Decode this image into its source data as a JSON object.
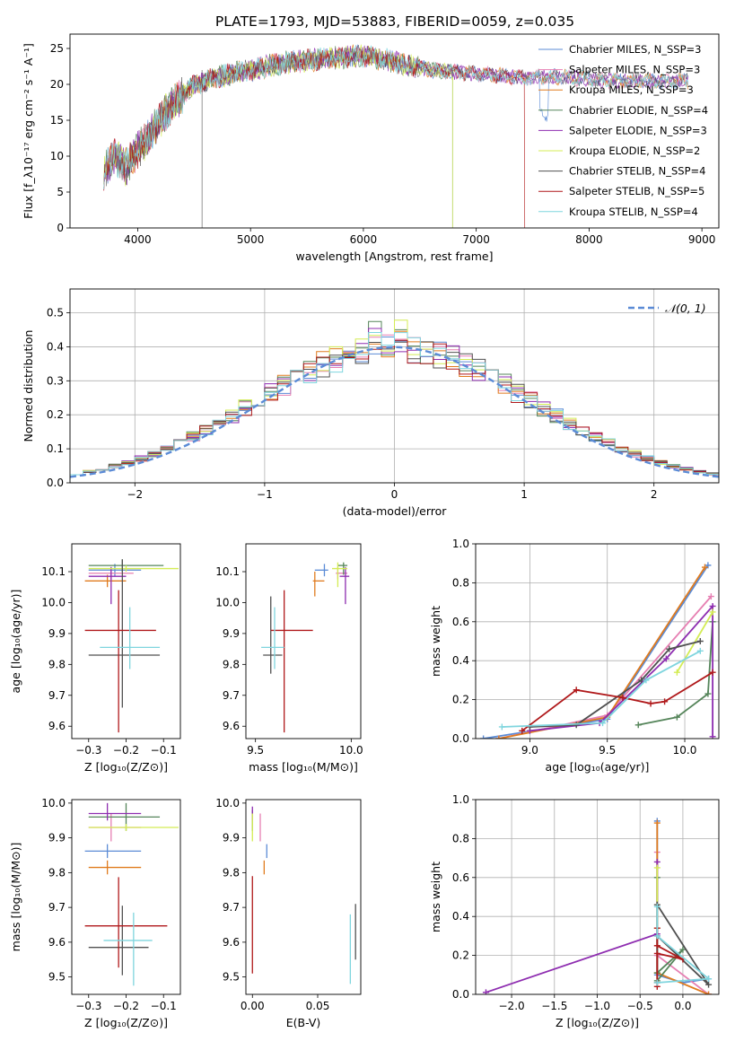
{
  "figure_title": "PLATE=1793, MJD=53883, FIBERID=0059, z=0.035",
  "colors": {
    "chabrier_miles": "#5b8bd6",
    "salpeter_miles": "#e67fb2",
    "kroupa_miles": "#e07b1e",
    "chabrier_elodie": "#55855a",
    "salpeter_elodie": "#8e2db0",
    "kroupa_elodie": "#d4ec54",
    "chabrier_stelib": "#505050",
    "salpeter_stelib": "#b0191b",
    "kroupa_stelib": "#7fd5de"
  },
  "chart_data": [
    {
      "id": "spectrum",
      "type": "line",
      "xlabel": "wavelength [Angstrom, rest frame]",
      "ylabel": "Flux [f_λ10⁻¹⁷ erg cm⁻² s⁻¹ A⁻¹]",
      "xlim": [
        3400,
        9150
      ],
      "ylim": [
        0,
        27
      ],
      "xticks": [
        4000,
        5000,
        6000,
        7000,
        8000,
        9000
      ],
      "yticks": [
        0,
        5,
        10,
        15,
        20,
        25
      ],
      "legend_position": "top-right",
      "legend": [
        "Chabrier MILES, N_SSP=3",
        "Salpeter MILES, N_SSP=3",
        "Kroupa MILES, N_SSP=3",
        "Chabrier ELODIE, N_SSP=4",
        "Salpeter ELODIE, N_SSP=3",
        "Kroupa ELODIE, N_SSP=2",
        "Chabrier STELIB, N_SSP=4",
        "Salpeter STELIB, N_SSP=5",
        "Kroupa STELIB, N_SSP=4"
      ],
      "spectrum_anchors": [
        [
          3700,
          8
        ],
        [
          3800,
          10
        ],
        [
          3900,
          8.5
        ],
        [
          4000,
          11
        ],
        [
          4100,
          12.5
        ],
        [
          4200,
          15
        ],
        [
          4300,
          17
        ],
        [
          4500,
          20
        ],
        [
          4700,
          21
        ],
        [
          5000,
          22
        ],
        [
          5300,
          23
        ],
        [
          5600,
          23.5
        ],
        [
          6000,
          24
        ],
        [
          6300,
          23
        ],
        [
          6600,
          22
        ],
        [
          7000,
          21.5
        ],
        [
          7400,
          21
        ],
        [
          7800,
          21
        ],
        [
          8200,
          20.5
        ],
        [
          8500,
          20.5
        ],
        [
          8900,
          20.5
        ]
      ],
      "drop_features": [
        [
          4570,
          0
        ],
        [
          6790,
          0
        ],
        [
          7430,
          0
        ]
      ]
    },
    {
      "id": "residuals",
      "type": "histogram",
      "xlabel": "(data-model)/error",
      "ylabel": "Normed distribution",
      "xlim": [
        -2.5,
        2.5
      ],
      "ylim": [
        0,
        0.57
      ],
      "xticks": [
        -2,
        -1,
        0,
        1,
        2
      ],
      "yticks": [
        0.0,
        0.1,
        0.2,
        0.3,
        0.4,
        0.5
      ],
      "legend_position": "top-right",
      "reference_label": "𝒩(0, 1)",
      "bin_width": 0.1
    },
    {
      "id": "age-vs-Z",
      "type": "scatter",
      "xlabel": "Z [log₁₀(Z/Z⊙)]",
      "ylabel": "age  [log₁₀(age/yr)]",
      "xlim": [
        -0.345,
        -0.055
      ],
      "ylim": [
        9.56,
        10.19
      ],
      "xticks": [
        -0.3,
        -0.2,
        -0.1
      ],
      "yticks": [
        9.6,
        9.7,
        9.8,
        9.9,
        10.0,
        10.1
      ],
      "points": [
        {
          "x": -0.23,
          "y": 10.105,
          "xerr": [
            0.07,
            0.07
          ],
          "yerr": [
            0.02,
            0.02
          ]
        },
        {
          "x": -0.24,
          "y": 10.095,
          "xerr": [
            0.06,
            0.06
          ],
          "yerr": [
            0.02,
            0.02
          ]
        },
        {
          "x": -0.25,
          "y": 10.07,
          "xerr": [
            0.06,
            0.05
          ],
          "yerr": [
            0.02,
            0.02
          ]
        },
        {
          "x": -0.21,
          "y": 10.12,
          "xerr": [
            0.09,
            0.11
          ],
          "yerr": [
            0.02,
            0.02
          ]
        },
        {
          "x": -0.24,
          "y": 10.085,
          "xerr": [
            0.06,
            0.04
          ],
          "yerr": [
            0.09,
            0.03
          ]
        },
        {
          "x": -0.2,
          "y": 10.11,
          "xerr": [
            0.1,
            0.14
          ],
          "yerr": [
            0.01,
            0.01
          ]
        },
        {
          "x": -0.21,
          "y": 9.83,
          "xerr": [
            0.09,
            0.1
          ],
          "yerr": [
            0.17,
            0.31
          ]
        },
        {
          "x": -0.22,
          "y": 9.91,
          "xerr": [
            0.09,
            0.1
          ],
          "yerr": [
            0.33,
            0.13
          ]
        },
        {
          "x": -0.19,
          "y": 9.855,
          "xerr": [
            0.08,
            0.08
          ],
          "yerr": [
            0.07,
            0.13
          ]
        }
      ]
    },
    {
      "id": "age-vs-mass",
      "type": "scatter",
      "xlabel": "mass [log₁₀(M/M⊙)]",
      "xlim": [
        9.45,
        10.05
      ],
      "ylim": [
        9.56,
        10.19
      ],
      "xticks": [
        9.5,
        10.0
      ],
      "yticks": [
        9.6,
        9.7,
        9.8,
        9.9,
        10.0,
        10.1
      ],
      "points": [
        {
          "x": 9.86,
          "y": 10.105,
          "xerr": [
            0.05,
            0.02
          ],
          "yerr": [
            0.02,
            0.02
          ]
        },
        {
          "x": 9.93,
          "y": 10.095,
          "xerr": [
            0.01,
            0.05
          ],
          "yerr": [
            0.02,
            0.02
          ]
        },
        {
          "x": 9.81,
          "y": 10.07,
          "xerr": [
            0.01,
            0.05
          ],
          "yerr": [
            0.05,
            0.03
          ]
        },
        {
          "x": 9.96,
          "y": 10.12,
          "xerr": [
            0.03,
            0.02
          ],
          "yerr": [
            0.03,
            0.01
          ]
        },
        {
          "x": 9.97,
          "y": 10.085,
          "xerr": [
            0.03,
            0.02
          ],
          "yerr": [
            0.09,
            0.03
          ]
        },
        {
          "x": 9.93,
          "y": 10.11,
          "xerr": [
            0.03,
            0.05
          ],
          "yerr": [
            0.06,
            0.02
          ]
        },
        {
          "x": 9.58,
          "y": 9.83,
          "xerr": [
            0.04,
            0.06
          ],
          "yerr": [
            0.06,
            0.19
          ]
        },
        {
          "x": 9.65,
          "y": 9.91,
          "xerr": [
            0.07,
            0.15
          ],
          "yerr": [
            0.33,
            0.13
          ]
        },
        {
          "x": 9.6,
          "y": 9.855,
          "xerr": [
            0.07,
            0.05
          ],
          "yerr": [
            0.07,
            0.13
          ]
        }
      ]
    },
    {
      "id": "massweight-vs-age",
      "type": "line",
      "xlabel": "age  [log₁₀(age/yr)]",
      "ylabel": "mass weight",
      "xlim": [
        8.65,
        10.22
      ],
      "ylim": [
        0,
        1.0
      ],
      "xticks": [
        9.0,
        9.5,
        10.0
      ],
      "yticks": [
        0.0,
        0.2,
        0.4,
        0.6,
        0.8,
        1.0
      ],
      "series": [
        {
          "points": [
            [
              8.7,
              0.0
            ],
            [
              9.5,
              0.1
            ],
            [
              10.15,
              0.89
            ]
          ]
        },
        {
          "points": [
            [
              8.8,
              0.0
            ],
            [
              9.5,
              0.12
            ],
            [
              10.17,
              0.73
            ]
          ]
        },
        {
          "points": [
            [
              8.8,
              0.0
            ],
            [
              9.5,
              0.11
            ],
            [
              10.13,
              0.88
            ]
          ]
        },
        {
          "points": [
            [
              9.7,
              0.07
            ],
            [
              9.95,
              0.11
            ],
            [
              10.15,
              0.23
            ],
            [
              10.18,
              0.6
            ]
          ]
        },
        {
          "points": [
            [
              9.0,
              0.04
            ],
            [
              9.45,
              0.08
            ],
            [
              9.88,
              0.41
            ],
            [
              10.18,
              0.68
            ],
            [
              10.18,
              0.01
            ]
          ]
        },
        {
          "points": [
            [
              9.95,
              0.34
            ],
            [
              10.18,
              0.65
            ]
          ]
        },
        {
          "points": [
            [
              9.0,
              0.06
            ],
            [
              9.3,
              0.07
            ],
            [
              9.72,
              0.3
            ],
            [
              9.9,
              0.46
            ],
            [
              10.1,
              0.5
            ]
          ]
        },
        {
          "points": [
            [
              8.95,
              0.04
            ],
            [
              9.3,
              0.25
            ],
            [
              9.6,
              0.21
            ],
            [
              9.78,
              0.18
            ],
            [
              9.87,
              0.19
            ],
            [
              10.18,
              0.34
            ]
          ]
        },
        {
          "points": [
            [
              8.82,
              0.06
            ],
            [
              9.47,
              0.08
            ],
            [
              9.75,
              0.3
            ],
            [
              10.1,
              0.45
            ]
          ]
        }
      ]
    },
    {
      "id": "mass-vs-Z",
      "type": "scatter",
      "xlabel": "Z [log₁₀(Z/Z⊙)]",
      "ylabel": "mass [log₁₀(M/M⊙)]",
      "xlim": [
        -0.345,
        -0.055
      ],
      "ylim": [
        9.45,
        10.01
      ],
      "xticks": [
        -0.3,
        -0.2,
        -0.1
      ],
      "yticks": [
        9.5,
        9.6,
        9.7,
        9.8,
        9.9,
        10.0
      ],
      "points": [
        {
          "x": -0.25,
          "y": 9.862,
          "xerr": [
            0.06,
            0.09
          ],
          "yerr": [
            0.02,
            0.02
          ]
        },
        {
          "x": -0.24,
          "y": 9.93,
          "xerr": [
            0.06,
            0.08
          ],
          "yerr": [
            0.04,
            0.04
          ]
        },
        {
          "x": -0.25,
          "y": 9.815,
          "xerr": [
            0.05,
            0.09
          ],
          "yerr": [
            0.02,
            0.02
          ]
        },
        {
          "x": -0.2,
          "y": 9.96,
          "xerr": [
            0.1,
            0.09
          ],
          "yerr": [
            0.04,
            0.04
          ]
        },
        {
          "x": -0.25,
          "y": 9.97,
          "xerr": [
            0.05,
            0.09
          ],
          "yerr": [
            0.02,
            0.03
          ]
        },
        {
          "x": -0.2,
          "y": 9.93,
          "xerr": [
            0.1,
            0.14
          ],
          "yerr": [
            0.01,
            0.01
          ]
        },
        {
          "x": -0.21,
          "y": 9.585,
          "xerr": [
            0.09,
            0.07
          ],
          "yerr": [
            0.08,
            0.12
          ]
        },
        {
          "x": -0.22,
          "y": 9.647,
          "xerr": [
            0.09,
            0.13
          ],
          "yerr": [
            0.12,
            0.14
          ]
        },
        {
          "x": -0.18,
          "y": 9.605,
          "xerr": [
            0.08,
            0.05
          ],
          "yerr": [
            0.13,
            0.08
          ]
        }
      ]
    },
    {
      "id": "mass-vs-EBV",
      "type": "scatter",
      "xlabel": "E(B-V)",
      "xlim": [
        -0.005,
        0.083
      ],
      "ylim": [
        9.45,
        10.01
      ],
      "xticks": [
        0.0,
        0.05
      ],
      "yticks": [
        9.5,
        9.6,
        9.7,
        9.8,
        9.9,
        10.0
      ],
      "points": [
        {
          "x": 0.011,
          "y": 9.862,
          "xerr": [
            0.0,
            0.0
          ],
          "yerr": [
            0.02,
            0.02
          ]
        },
        {
          "x": 0.006,
          "y": 9.93,
          "xerr": [
            0.0,
            0.0
          ],
          "yerr": [
            0.04,
            0.04
          ]
        },
        {
          "x": 0.009,
          "y": 9.815,
          "xerr": [
            0.0,
            0.0
          ],
          "yerr": [
            0.02,
            0.02
          ]
        },
        {
          "x": 0.0,
          "y": 9.96,
          "xerr": [
            0.0,
            0.0
          ],
          "yerr": [
            0.04,
            0.02
          ]
        },
        {
          "x": 0.0,
          "y": 9.97,
          "xerr": [
            0.0,
            0.0
          ],
          "yerr": [
            0.02,
            0.02
          ]
        },
        {
          "x": 0.0,
          "y": 9.93,
          "xerr": [
            0.0,
            0.0
          ],
          "yerr": [
            0.04,
            0.04
          ]
        },
        {
          "x": 0.079,
          "y": 9.63,
          "xerr": [
            0.0,
            0.0
          ],
          "yerr": [
            0.08,
            0.08
          ]
        },
        {
          "x": 0.0,
          "y": 9.65,
          "xerr": [
            0.0,
            0.0
          ],
          "yerr": [
            0.14,
            0.14
          ]
        },
        {
          "x": 0.075,
          "y": 9.58,
          "xerr": [
            0.0,
            0.0
          ],
          "yerr": [
            0.1,
            0.1
          ]
        }
      ]
    },
    {
      "id": "massweight-vs-Z",
      "type": "line",
      "xlabel": "Z [log₁₀(Z/Z⊙)]",
      "ylabel": "mass weight",
      "xlim": [
        -2.42,
        0.42
      ],
      "ylim": [
        0,
        1.0
      ],
      "xticks": [
        -2.0,
        -1.5,
        -1.0,
        -0.5,
        0.0
      ],
      "yticks": [
        0.0,
        0.2,
        0.4,
        0.6,
        0.8,
        1.0
      ],
      "series": [
        {
          "points": [
            [
              -0.3,
              0.89
            ],
            [
              -0.3,
              0.1
            ],
            [
              0.0,
              0.06
            ],
            [
              0.3,
              0.08
            ]
          ]
        },
        {
          "points": [
            [
              -0.3,
              0.73
            ],
            [
              -0.3,
              0.2
            ],
            [
              0.3,
              0.0
            ]
          ]
        },
        {
          "points": [
            [
              -0.3,
              0.88
            ],
            [
              -0.3,
              0.11
            ],
            [
              0.3,
              0.0
            ]
          ]
        },
        {
          "points": [
            [
              -0.3,
              0.6
            ],
            [
              -0.3,
              0.11
            ],
            [
              0.0,
              0.23
            ],
            [
              -0.3,
              0.07
            ]
          ]
        },
        {
          "points": [
            [
              -2.3,
              0.01
            ],
            [
              -0.3,
              0.31
            ],
            [
              -0.3,
              0.68
            ]
          ]
        },
        {
          "points": [
            [
              -0.3,
              0.65
            ],
            [
              -0.3,
              0.34
            ]
          ]
        },
        {
          "points": [
            [
              -0.3,
              0.46
            ],
            [
              0.3,
              0.05
            ],
            [
              -0.3,
              0.3
            ],
            [
              -0.3,
              0.06
            ]
          ]
        },
        {
          "points": [
            [
              -0.3,
              0.34
            ],
            [
              -0.3,
              0.25
            ],
            [
              0.0,
              0.18
            ],
            [
              -0.3,
              0.21
            ],
            [
              -0.3,
              0.04
            ]
          ]
        },
        {
          "points": [
            [
              -0.3,
              0.45
            ],
            [
              -0.3,
              0.3
            ],
            [
              0.3,
              0.08
            ],
            [
              -0.3,
              0.06
            ]
          ]
        }
      ]
    }
  ]
}
